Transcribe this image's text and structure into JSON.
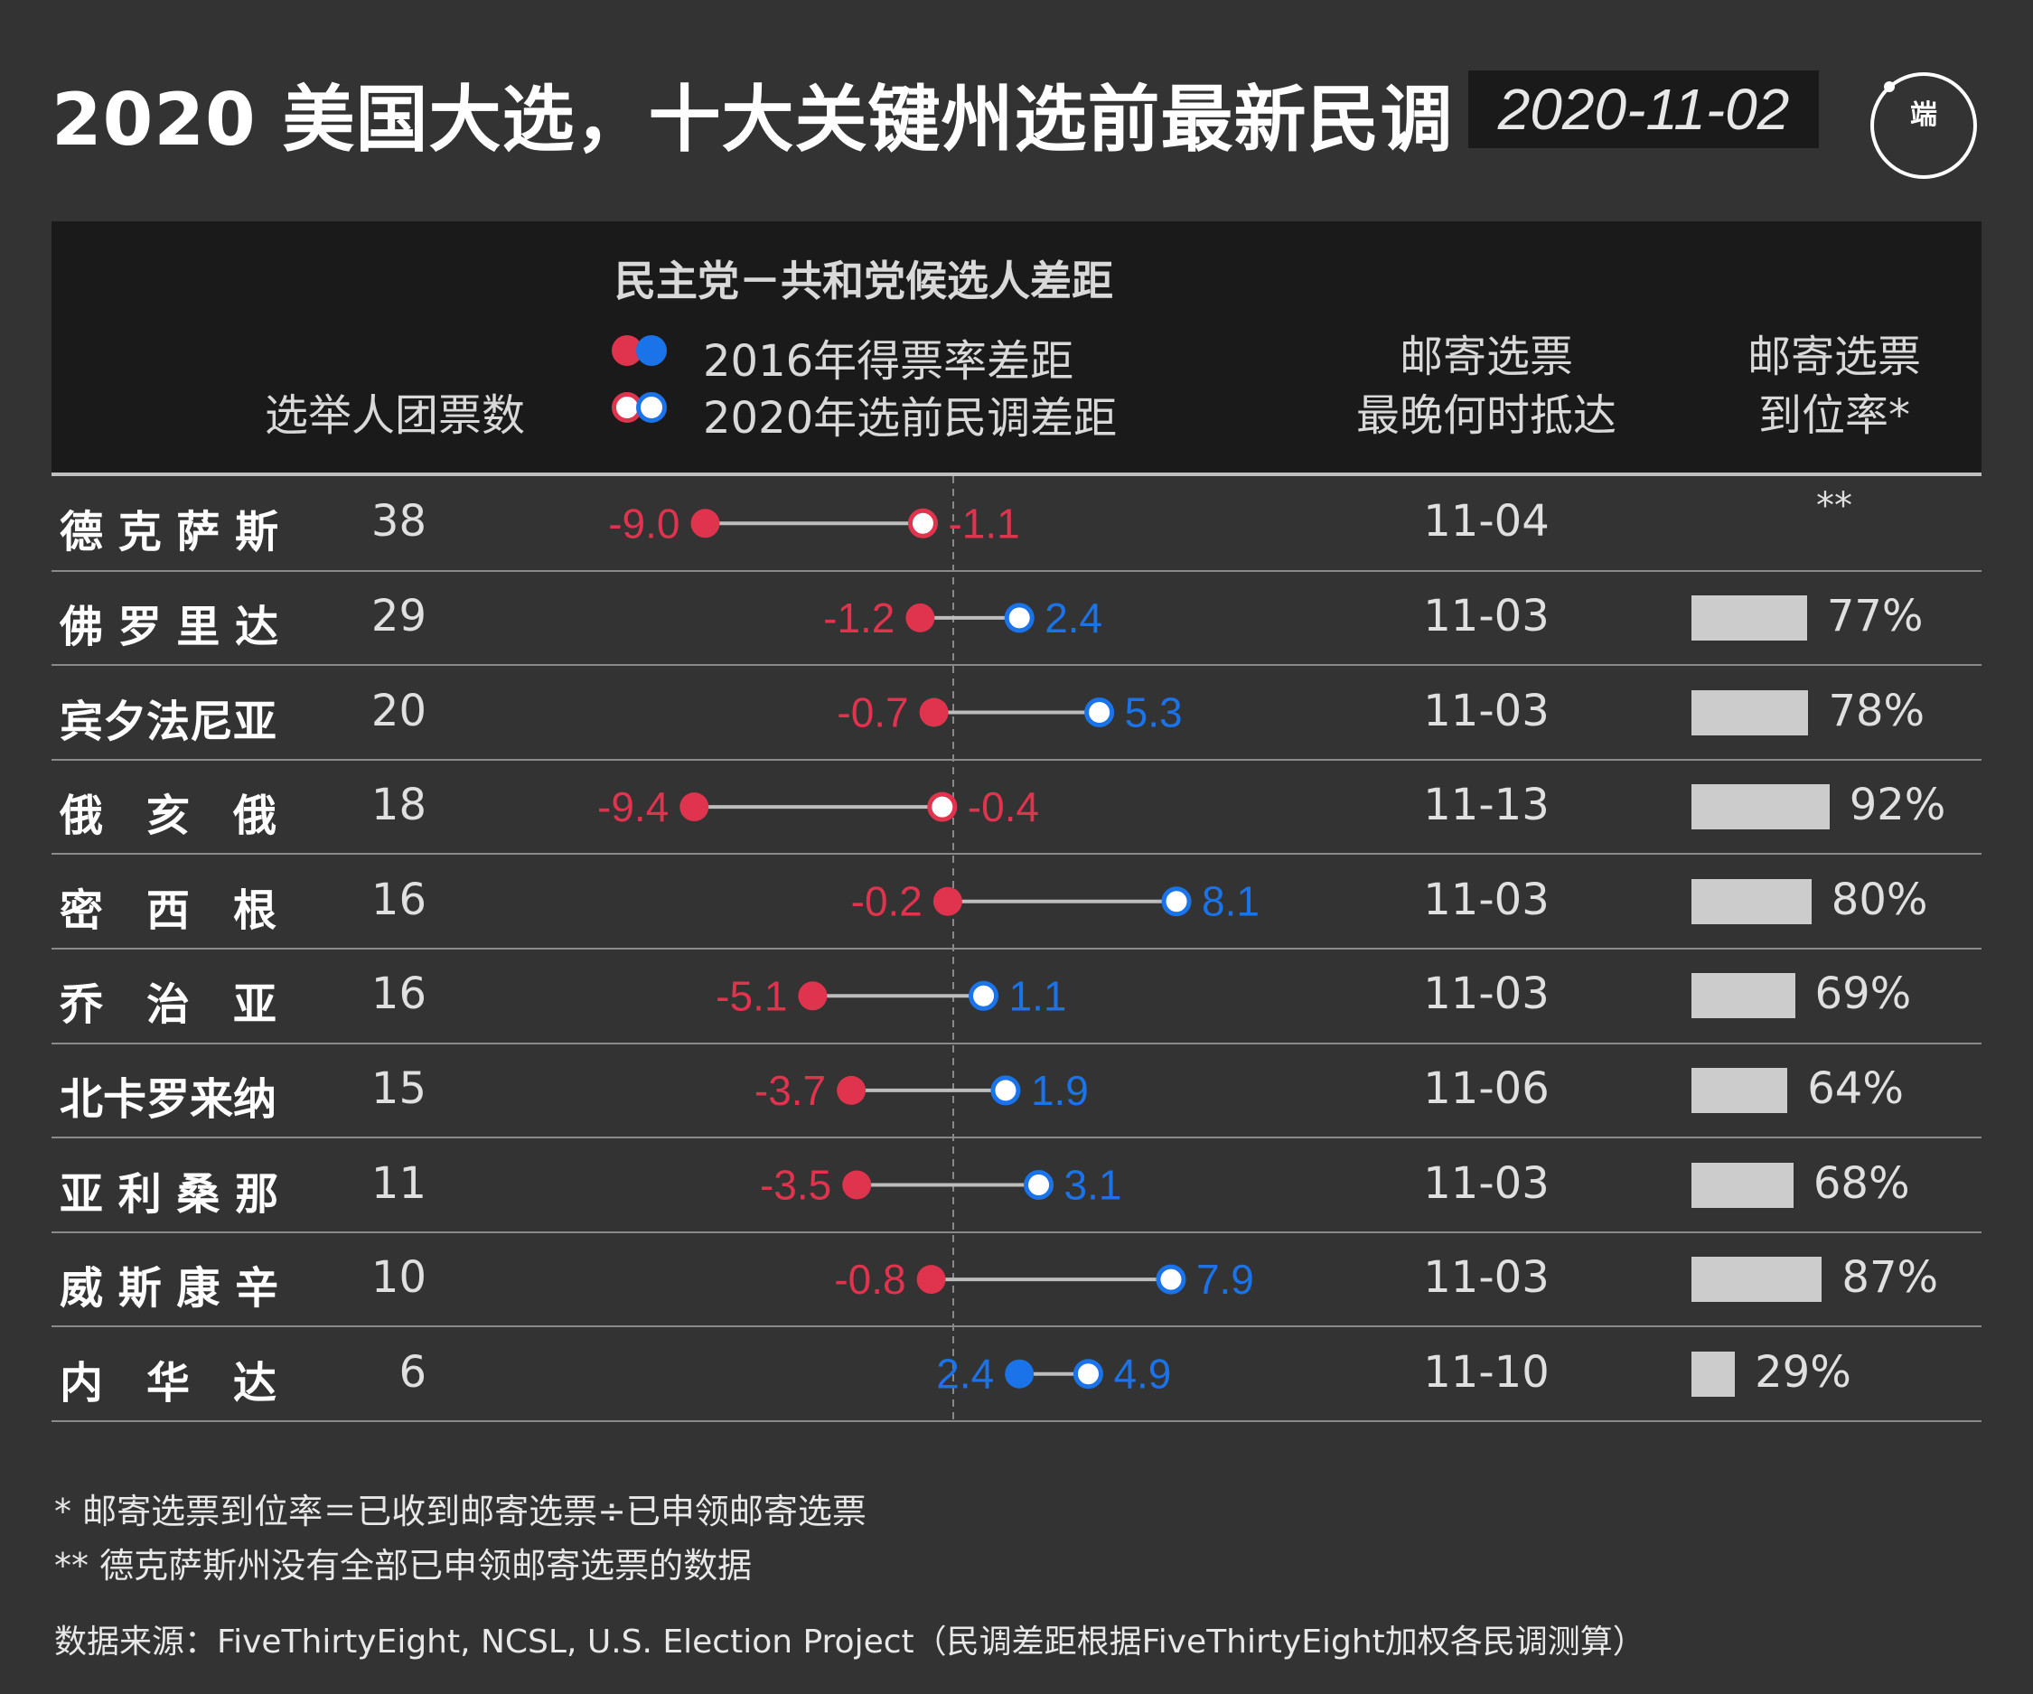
{
  "title": "2020 美国大选，十大关键州选前最新民调",
  "date_badge": "2020-11-02",
  "logo_text": "端",
  "header": {
    "ev_label": "选举人团票数",
    "margin_title": "民主党－共和党候选人差距",
    "legend_2016": "2016年得票率差距",
    "legend_2020": "2020年选前民调差距",
    "mail_deadline_line1": "邮寄选票",
    "mail_deadline_line2": "最晚何时抵达",
    "arrival_line1": "邮寄选票",
    "arrival_line2": "到位率*"
  },
  "colors": {
    "republican": "#e0334d",
    "democrat": "#1a73e8",
    "background": "#333333",
    "header_band": "#1a1a1a",
    "bar": "#cccccc"
  },
  "chart_data": {
    "type": "dumbbell",
    "x_zero": 0,
    "series": [
      {
        "name": "2016年得票率差距",
        "marker": "filled"
      },
      {
        "name": "2020年选前民调差距",
        "marker": "hollow"
      }
    ],
    "rows": [
      {
        "state": "德 克 萨 斯",
        "ev": "38",
        "m2016": -9.0,
        "m2016_label": "-9.0",
        "m2020": -1.1,
        "m2020_label": "-1.1",
        "deadline": "11-04",
        "arrival": null,
        "arrival_label": "**"
      },
      {
        "state": "佛 罗 里 达",
        "ev": "29",
        "m2016": -1.2,
        "m2016_label": "-1.2",
        "m2020": 2.4,
        "m2020_label": "2.4",
        "deadline": "11-03",
        "arrival": 77,
        "arrival_label": "77%"
      },
      {
        "state": "宾夕法尼亚",
        "ev": "20",
        "m2016": -0.7,
        "m2016_label": "-0.7",
        "m2020": 5.3,
        "m2020_label": "5.3",
        "deadline": "11-03",
        "arrival": 78,
        "arrival_label": "78%"
      },
      {
        "state": "俄　亥　俄",
        "ev": "18",
        "m2016": -9.4,
        "m2016_label": "-9.4",
        "m2020": -0.4,
        "m2020_label": "-0.4",
        "deadline": "11-13",
        "arrival": 92,
        "arrival_label": "92%"
      },
      {
        "state": "密　西　根",
        "ev": "16",
        "m2016": -0.2,
        "m2016_label": "-0.2",
        "m2020": 8.1,
        "m2020_label": "8.1",
        "deadline": "11-03",
        "arrival": 80,
        "arrival_label": "80%"
      },
      {
        "state": "乔　治　亚",
        "ev": "16",
        "m2016": -5.1,
        "m2016_label": "-5.1",
        "m2020": 1.1,
        "m2020_label": "1.1",
        "deadline": "11-03",
        "arrival": 69,
        "arrival_label": "69%"
      },
      {
        "state": "北卡罗来纳",
        "ev": "15",
        "m2016": -3.7,
        "m2016_label": "-3.7",
        "m2020": 1.9,
        "m2020_label": "1.9",
        "deadline": "11-06",
        "arrival": 64,
        "arrival_label": "64%"
      },
      {
        "state": "亚 利 桑 那",
        "ev": "11",
        "m2016": -3.5,
        "m2016_label": "-3.5",
        "m2020": 3.1,
        "m2020_label": "3.1",
        "deadline": "11-03",
        "arrival": 68,
        "arrival_label": "68%"
      },
      {
        "state": "威 斯 康 辛",
        "ev": "10",
        "m2016": -0.8,
        "m2016_label": "-0.8",
        "m2020": 7.9,
        "m2020_label": "7.9",
        "deadline": "11-03",
        "arrival": 87,
        "arrival_label": "87%"
      },
      {
        "state": "内　华　达",
        "ev": "6",
        "m2016": 2.4,
        "m2016_label": "2.4",
        "m2020": 4.9,
        "m2020_label": "4.9",
        "deadline": "11-10",
        "arrival": 29,
        "arrival_label": "29%"
      }
    ]
  },
  "footnotes": {
    "note1": "* 邮寄选票到位率＝已收到邮寄选票÷已申领邮寄选票",
    "note2": "** 德克萨斯州没有全部已申领邮寄选票的数据",
    "source": "数据来源：FiveThirtyEight, NCSL, U.S. Election Project（民调差距根据FiveThirtyEight加权各民调测算）"
  }
}
